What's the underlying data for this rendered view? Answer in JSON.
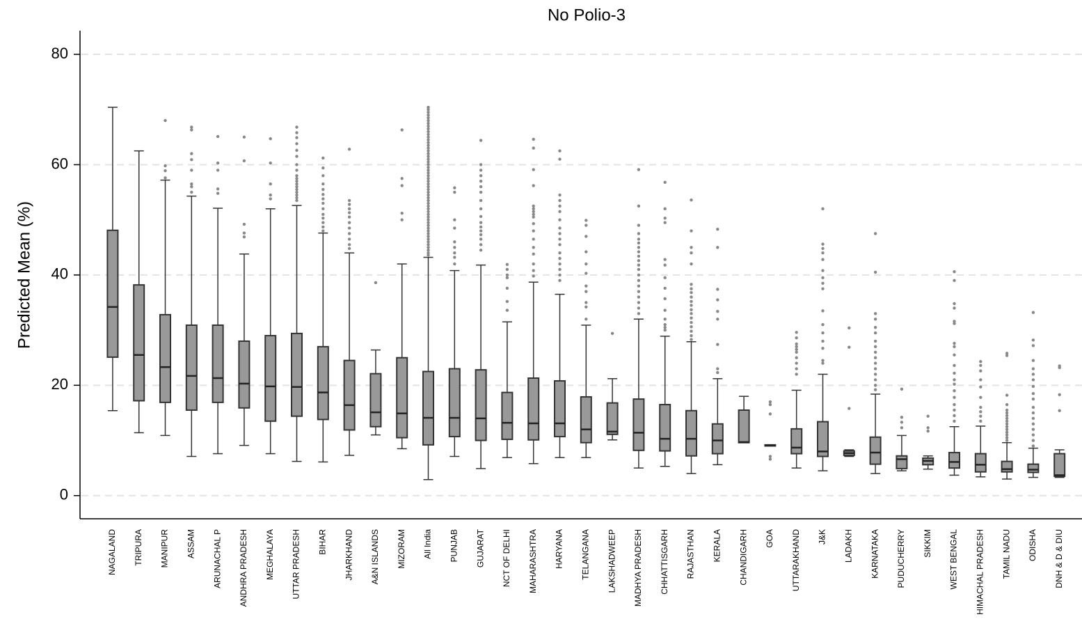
{
  "chart_data": {
    "type": "box",
    "title": "No Polio-3",
    "y_label": "Predicted Mean (%)",
    "ylim": [
      -4.2,
      84.3
    ],
    "yticks": [
      0,
      20,
      40,
      60,
      80
    ],
    "grid": true,
    "box_color": "#999999",
    "outlier_color": "#888888",
    "categories": [
      "NAGALAND",
      "TRIPURA",
      "MANIPUR",
      "ASSAM",
      "ARUNACHAL P",
      "ANDHRA PRADESH",
      "MEGHALAYA",
      "UTTAR PRADESH",
      "BIHAR",
      "JHARKHAND",
      "A&N ISLANDS",
      "MIZORAM",
      "All India",
      "PUNJAB",
      "GUJARAT",
      "NCT OF DELHI",
      "MAHARASHTRA",
      "HARYANA",
      "TELANGANA",
      "LAKSHADWEEP",
      "MADHYA PRADESH",
      "CHHATTISGARH",
      "RAJASTHAN",
      "KERALA",
      "CHANDIGARH",
      "GOA",
      "UTTARAKHAND",
      "J&K",
      "LADAKH",
      "KARNATAKA",
      "PUDUCHERRY",
      "SIKKIM",
      "WEST BENGAL",
      "HIMACHAL PRADESH",
      "TAMIL NADU",
      "ODISHA",
      "DNH & D & DIU"
    ],
    "boxes": [
      {
        "low": 15.4,
        "q1": 25.1,
        "median": 34.2,
        "q3": 48.1,
        "high": 70.4,
        "outliers": []
      },
      {
        "low": 11.4,
        "q1": 17.2,
        "median": 25.5,
        "q3": 38.2,
        "high": 62.5,
        "outliers": []
      },
      {
        "low": 10.9,
        "q1": 16.9,
        "median": 23.3,
        "q3": 32.8,
        "high": 57.2,
        "outliers": [
          68,
          59.8,
          58.9,
          57.6
        ]
      },
      {
        "low": 7.1,
        "q1": 15.5,
        "median": 21.7,
        "q3": 30.9,
        "high": 54.3,
        "outliers": [
          66.8,
          66.3,
          62,
          60.9,
          59,
          56.5,
          56,
          55
        ]
      },
      {
        "low": 7.6,
        "q1": 16.9,
        "median": 21.3,
        "q3": 30.9,
        "high": 52.1,
        "outliers": [
          65.1,
          60.3,
          59,
          55.6,
          54.8
        ]
      },
      {
        "low": 9.1,
        "q1": 15.9,
        "median": 20.3,
        "q3": 28.0,
        "high": 43.8,
        "outliers": [
          65.0,
          60.7,
          49.2,
          47.6,
          46.9
        ]
      },
      {
        "low": 7.6,
        "q1": 13.5,
        "median": 19.8,
        "q3": 29.0,
        "high": 52.0,
        "outliers": [
          64.7,
          60.3,
          56.5,
          54.5,
          53.8
        ]
      },
      {
        "low": 6.2,
        "q1": 14.4,
        "median": 19.7,
        "q3": 29.4,
        "high": 52.6,
        "outliers": [
          66.8,
          65.8,
          64.9,
          63.8,
          62.6,
          61.5,
          60,
          59,
          58,
          57.5,
          57,
          56.5,
          56,
          55.5,
          55,
          54.5,
          54,
          53.5
        ]
      },
      {
        "low": 6.1,
        "q1": 13.8,
        "median": 18.7,
        "q3": 27.0,
        "high": 47.6,
        "outliers": [
          61.2,
          59.4,
          58,
          56.5,
          55.5,
          54.6,
          53.8,
          53,
          52,
          51,
          50.3,
          49.5,
          48.7,
          48
        ]
      },
      {
        "low": 7.3,
        "q1": 11.9,
        "median": 16.4,
        "q3": 24.5,
        "high": 44.0,
        "outliers": [
          62.8,
          53.5,
          52.8,
          52,
          51.3,
          50.5,
          49.5,
          48.5,
          47.5,
          46.5,
          45.5,
          44.8
        ]
      },
      {
        "low": 11.0,
        "q1": 12.5,
        "median": 15.1,
        "q3": 22.1,
        "high": 26.4,
        "outliers": [
          38.6
        ]
      },
      {
        "low": 8.5,
        "q1": 10.5,
        "median": 14.9,
        "q3": 25.0,
        "high": 42.0,
        "outliers": [
          66.3,
          57.5,
          56.2,
          51.2,
          50
        ]
      },
      {
        "low": 2.9,
        "q1": 9.2,
        "median": 14.1,
        "q3": 22.5,
        "high": 43.2,
        "outliers": [
          43.6,
          44,
          44.5,
          45,
          45.5,
          46,
          46.5,
          47,
          47.5,
          48,
          48.5,
          49,
          49.5,
          50,
          50.5,
          51,
          51.5,
          52,
          52.5,
          53,
          53.5,
          54,
          54.5,
          55,
          55.5,
          56,
          56.5,
          57,
          57.5,
          58,
          58.5,
          59,
          59.5,
          60,
          60.5,
          61,
          61.5,
          62,
          62.5,
          63,
          63.5,
          64,
          64.5,
          65,
          65.5,
          66,
          66.5,
          67,
          67.5,
          68,
          68.5,
          69,
          69.5,
          70,
          70.4
        ]
      },
      {
        "low": 7.1,
        "q1": 10.7,
        "median": 14.1,
        "q3": 23.0,
        "high": 40.8,
        "outliers": [
          55.8,
          55,
          50,
          48.5,
          46,
          45,
          44,
          43.2,
          42
        ]
      },
      {
        "low": 4.9,
        "q1": 10.0,
        "median": 14.0,
        "q3": 22.8,
        "high": 41.8,
        "outliers": [
          64.4,
          60,
          59,
          58,
          57,
          56,
          55,
          53.5,
          52,
          50.6,
          49.5,
          48.7,
          48,
          47.3,
          46.5,
          45.5,
          44.5
        ]
      },
      {
        "low": 6.9,
        "q1": 10.2,
        "median": 13.2,
        "q3": 18.7,
        "high": 31.5,
        "outliers": [
          41.9,
          41,
          40,
          39.5,
          37.6,
          35.2,
          33.6
        ]
      },
      {
        "low": 5.8,
        "q1": 10.1,
        "median": 13.1,
        "q3": 21.3,
        "high": 38.7,
        "outliers": [
          64.6,
          63,
          59.1,
          56.2,
          52.5,
          52,
          51.5,
          51,
          50.5,
          49.3,
          48,
          46.5,
          45,
          43.8,
          42,
          40.8,
          39.8
        ]
      },
      {
        "low": 6.9,
        "q1": 10.7,
        "median": 13.1,
        "q3": 20.8,
        "high": 36.5,
        "outliers": [
          62.5,
          61,
          54.5,
          53.5,
          52.5,
          51.5,
          50,
          48.5,
          47.5,
          46.5,
          45.5,
          44,
          43,
          42,
          41,
          40,
          39
        ]
      },
      {
        "low": 6.9,
        "q1": 9.6,
        "median": 12.0,
        "q3": 17.9,
        "high": 30.9,
        "outliers": [
          49.9,
          49,
          47,
          44.2,
          42,
          40.3,
          38,
          37,
          35,
          34.2,
          32
        ]
      },
      {
        "low": 10.1,
        "q1": 11.1,
        "median": 11.6,
        "q3": 16.8,
        "high": 21.2,
        "outliers": [
          29.4
        ]
      },
      {
        "low": 5.0,
        "q1": 8.2,
        "median": 11.4,
        "q3": 17.5,
        "high": 32.0,
        "outliers": [
          59.1,
          52.5,
          49,
          47.5,
          46.5,
          45.8,
          45,
          44.2,
          43.4,
          42.6,
          41.8,
          41,
          40,
          39,
          38,
          37,
          36,
          35,
          34,
          33
        ]
      },
      {
        "low": 5.3,
        "q1": 8.1,
        "median": 10.3,
        "q3": 16.5,
        "high": 28.9,
        "outliers": [
          56.8,
          52,
          50.3,
          49.5,
          42.8,
          41.8,
          39.5,
          37.6,
          35.7,
          33.6,
          32,
          31,
          30.5,
          30
        ]
      },
      {
        "low": 4.0,
        "q1": 7.2,
        "median": 10.3,
        "q3": 15.4,
        "high": 27.9,
        "outliers": [
          53.6,
          48,
          45,
          44,
          42,
          38.3,
          37.5,
          36.8,
          36,
          35.2,
          34.5,
          33.7,
          33,
          32.2,
          31.4,
          30.6,
          29.8,
          29,
          28.3
        ]
      },
      {
        "low": 5.6,
        "q1": 7.6,
        "median": 10.0,
        "q3": 13.0,
        "high": 21.2,
        "outliers": [
          48.3,
          45,
          37.4,
          35.5,
          33.4,
          32,
          27.4,
          23,
          22.3
        ]
      },
      {
        "low": 9.6,
        "q1": 9.6,
        "median": 9.7,
        "q3": 15.5,
        "high": 18.0,
        "outliers": []
      },
      {
        "low": 9.0,
        "q1": 9.0,
        "median": 9.1,
        "q3": 9.2,
        "high": 9.2,
        "outliers": [
          17,
          16.5,
          14.8,
          7.1,
          6.6
        ]
      },
      {
        "low": 5.0,
        "q1": 7.6,
        "median": 8.7,
        "q3": 12.1,
        "high": 19.1,
        "outliers": [
          29.6,
          28.6,
          27.5,
          27,
          26.5,
          26,
          25,
          24,
          23,
          22
        ]
      },
      {
        "low": 4.5,
        "q1": 7.1,
        "median": 8.0,
        "q3": 13.4,
        "high": 22.0,
        "outliers": [
          52,
          45.6,
          44.8,
          44,
          42.8,
          40.8,
          39.5,
          38.5,
          37.5,
          33.5,
          31,
          29.5,
          28,
          26.7,
          24.5,
          24
        ]
      },
      {
        "low": 7.1,
        "q1": 7.3,
        "median": 7.7,
        "q3": 8.1,
        "high": 8.3,
        "outliers": [
          30.4,
          26.9,
          15.8
        ]
      },
      {
        "low": 4.0,
        "q1": 5.7,
        "median": 7.8,
        "q3": 10.6,
        "high": 18.4,
        "outliers": [
          47.5,
          40.5,
          33,
          32,
          30.5,
          29.5,
          28,
          27,
          26,
          25,
          24,
          23,
          22,
          21,
          20,
          19.2
        ]
      },
      {
        "low": 4.5,
        "q1": 4.9,
        "median": 6.6,
        "q3": 7.2,
        "high": 10.9,
        "outliers": [
          19.3,
          14.2,
          13.3,
          12.3
        ]
      },
      {
        "low": 4.8,
        "q1": 5.6,
        "median": 6.3,
        "q3": 6.8,
        "high": 7.2,
        "outliers": [
          14.4,
          12.3,
          11.7
        ]
      },
      {
        "low": 3.7,
        "q1": 5.0,
        "median": 6.1,
        "q3": 7.8,
        "high": 12.5,
        "outliers": [
          40.6,
          39,
          34.8,
          34,
          31.6,
          31.2,
          27.6,
          27,
          25.5,
          23.6,
          22.2,
          21,
          20.2,
          19,
          17.8,
          16.5,
          15.5,
          14.5,
          13.5
        ]
      },
      {
        "low": 3.4,
        "q1": 4.3,
        "median": 5.6,
        "q3": 7.6,
        "high": 12.6,
        "outliers": [
          24.3,
          23.6,
          22.6,
          21,
          19.7,
          17.8,
          16,
          15.2,
          14.4,
          13.5
        ]
      },
      {
        "low": 3.0,
        "q1": 4.3,
        "median": 4.8,
        "q3": 6.2,
        "high": 9.6,
        "outliers": [
          25.8,
          25.4,
          18.2,
          16.5,
          15.5,
          15,
          14.5,
          14,
          13.5,
          13,
          12.5,
          12,
          11.5,
          11,
          10.5,
          10
        ]
      },
      {
        "low": 3.3,
        "q1": 4.2,
        "median": 4.7,
        "q3": 5.7,
        "high": 8.6,
        "outliers": [
          33.2,
          28.2,
          27.2,
          24.5,
          23,
          22,
          21,
          19.8,
          18.5,
          17.5,
          16,
          15,
          14,
          13,
          12,
          11,
          10,
          9
        ]
      },
      {
        "low": 3.3,
        "q1": 3.5,
        "median": 3.7,
        "q3": 7.6,
        "high": 8.3,
        "outliers": [
          23.5,
          23.2,
          18.3,
          15.4
        ]
      }
    ]
  }
}
